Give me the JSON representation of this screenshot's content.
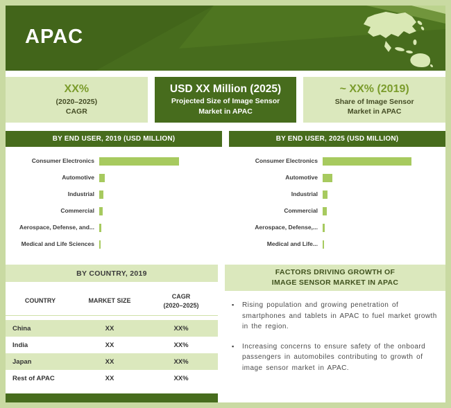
{
  "colors": {
    "dark_green": "#476c1d",
    "light_green_panel": "#dbe8bd",
    "bar_green": "#a7ca5f",
    "frame_green": "#c9daa2",
    "accent_green_text": "#7b9c2c"
  },
  "header": {
    "title": "APAC"
  },
  "stats": [
    {
      "value": "XX%",
      "sub1": "(2020–2025)",
      "sub2": "CAGR"
    },
    {
      "value": "USD XX Million (2025)",
      "sub1": "Projected Size of Image Sensor",
      "sub2": "Market in APAC"
    },
    {
      "value": "~ XX% (2019)",
      "sub1": "Share of Image Sensor",
      "sub2": "Market in APAC"
    }
  ],
  "chart_data": [
    {
      "type": "bar",
      "orientation": "horizontal",
      "title": "BY END USER, 2019 (USD MILLION)",
      "categories": [
        "Consumer Electronics",
        "Automotive",
        "Industrial",
        "Commercial",
        "Aerospace, Defense, and...",
        "Medical and Life Sciences"
      ],
      "values": [
        112,
        8,
        6,
        5,
        2.5,
        1.5
      ],
      "xlabel": "",
      "ylabel": "",
      "legend": false,
      "grid": false
    },
    {
      "type": "bar",
      "orientation": "horizontal",
      "title": "BY END USER, 2025 (USD MILLION)",
      "categories": [
        "Consumer Electronics",
        "Automotive",
        "Industrial",
        "Commercial",
        "Aerospace, Defense,...",
        "Medical and Life..."
      ],
      "values": [
        125,
        14,
        7,
        6,
        3,
        2
      ],
      "xlabel": "",
      "ylabel": "",
      "legend": false,
      "grid": false
    },
    {
      "type": "table",
      "title": "BY COUNTRY, 2019",
      "columns": [
        "COUNTRY",
        "MARKET SIZE",
        "CAGR (2020–2025)"
      ],
      "rows": [
        [
          "China",
          "XX",
          "XX%"
        ],
        [
          "India",
          "XX",
          "XX%"
        ],
        [
          "Japan",
          "XX",
          "XX%"
        ],
        [
          "Rest of APAC",
          "XX",
          "XX%"
        ]
      ]
    }
  ],
  "country_table": {
    "title": "BY COUNTRY,  2019",
    "columns": [
      "COUNTRY",
      "MARKET SIZE",
      "CAGR"
    ],
    "cagr_period": "(2020–2025)",
    "rows": [
      {
        "country": "China",
        "market_size": "XX",
        "cagr": "XX%"
      },
      {
        "country": "India",
        "market_size": "XX",
        "cagr": "XX%"
      },
      {
        "country": "Japan",
        "market_size": "XX",
        "cagr": "XX%"
      },
      {
        "country": "Rest of APAC",
        "market_size": "XX",
        "cagr": "XX%"
      }
    ]
  },
  "factors": {
    "title_line1": "FACTORS DRIVING GROWTH OF",
    "title_line2": "IMAGE SENSOR MARKET IN APAC",
    "bullets": [
      "Rising population and growing penetration of smartphones and tablets in APAC to fuel market growth in the region.",
      "Increasing concerns to ensure safety of the onboard passengers in automobiles contributing to growth of image sensor market in APAC."
    ]
  }
}
